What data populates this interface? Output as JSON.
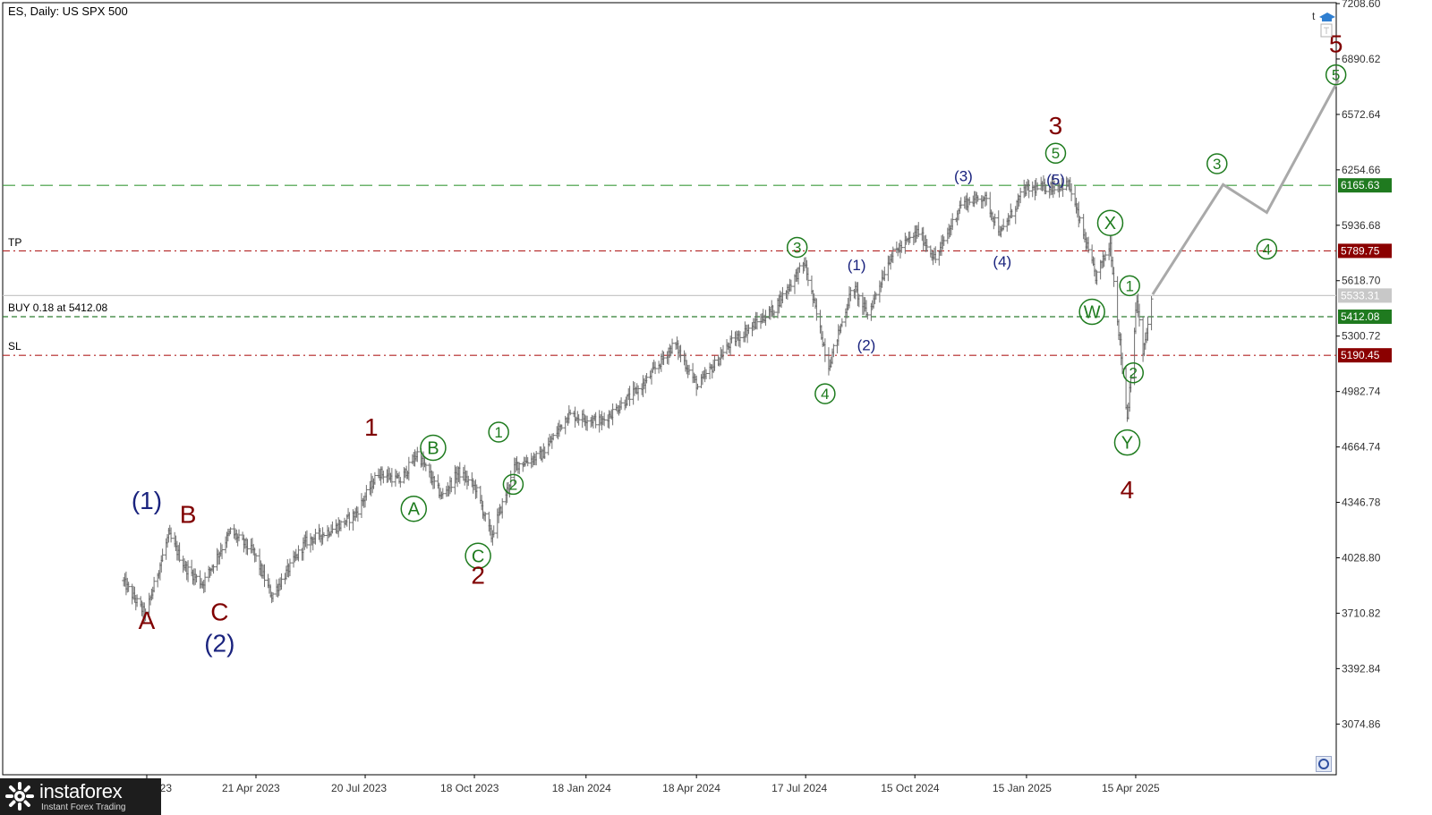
{
  "header": {
    "title": "ES, Daily:  US SPX 500"
  },
  "levels": {
    "tp_label": "TP",
    "buy_label": "BUY 0.18 at 5412.08",
    "sl_label": "SL"
  },
  "logo": {
    "name": "instaforex",
    "tagline": "Instant Forex Trading"
  },
  "icons": {
    "top_right": "trade-hat-icon",
    "bottom_right": "auto-scroll-icon"
  },
  "colors": {
    "bar": "#6e6e6e",
    "blue_label": "#1a237e",
    "red_label": "#800000",
    "green_label": "#1e7b1e",
    "tp_sl_line": "#b22222",
    "buy_line": "#2e7d32",
    "target_line": "#3c9a3c",
    "current_line": "#c8c8c8",
    "projection": "#a9a9a9"
  },
  "chart_data": {
    "type": "ohlc",
    "title": "ES, Daily:  US SPX 500",
    "ylim": [
      2940,
      7208.6
    ],
    "y_ticks": [
      3074.86,
      3392.84,
      3710.82,
      4028.8,
      4346.78,
      4664.74,
      4982.74,
      5300.72,
      5618.7,
      5936.68,
      6254.66,
      6572.64,
      6890.62,
      7208.6
    ],
    "x_ticks": [
      "21 Jan 2023",
      "21 Apr 2023",
      "20 Jul 2023",
      "18 Oct 2023",
      "18 Jan 2024",
      "18 Apr 2024",
      "17 Jul 2024",
      "15 Oct 2024",
      "15 Jan 2025",
      "15 Apr 2025"
    ],
    "price_lines": [
      {
        "name": "target",
        "value": 6165.63,
        "label": "6165.63",
        "style": "dashed-green"
      },
      {
        "name": "tp",
        "value": 5789.75,
        "label": "5789.75",
        "style": "dashdot-red"
      },
      {
        "name": "current",
        "value": 5533.31,
        "label": "5533.31",
        "style": "solid-grey"
      },
      {
        "name": "buy",
        "value": 5412.08,
        "label": "5412.08",
        "style": "dashed-green"
      },
      {
        "name": "sl",
        "value": 5190.45,
        "label": "5190.45",
        "style": "dashdot-red"
      }
    ],
    "price_path": [
      [
        "2023-01-01",
        3900
      ],
      [
        "2023-01-20",
        3700
      ],
      [
        "2023-02-08",
        4160
      ],
      [
        "2023-02-22",
        3970
      ],
      [
        "2023-03-08",
        3880
      ],
      [
        "2023-03-31",
        4180
      ],
      [
        "2023-04-19",
        4060
      ],
      [
        "2023-05-04",
        3810
      ],
      [
        "2023-06-01",
        4120
      ],
      [
        "2023-06-28",
        4210
      ],
      [
        "2023-07-12",
        4280
      ],
      [
        "2023-07-31",
        4520
      ],
      [
        "2023-08-18",
        4470
      ],
      [
        "2023-09-01",
        4630
      ],
      [
        "2023-09-21",
        4380
      ],
      [
        "2023-10-05",
        4520
      ],
      [
        "2023-10-19",
        4430
      ],
      [
        "2023-11-01",
        4150
      ],
      [
        "2023-11-21",
        4560
      ],
      [
        "2023-12-13",
        4620
      ],
      [
        "2024-01-03",
        4850
      ],
      [
        "2024-01-31",
        4810
      ],
      [
        "2024-03-05",
        5020
      ],
      [
        "2024-03-31",
        5260
      ],
      [
        "2024-04-19",
        5010
      ],
      [
        "2024-05-16",
        5260
      ],
      [
        "2024-06-20",
        5450
      ],
      [
        "2024-07-16",
        5720
      ],
      [
        "2024-08-05",
        5130
      ],
      [
        "2024-08-25",
        5590
      ],
      [
        "2024-09-06",
        5420
      ],
      [
        "2024-09-25",
        5760
      ],
      [
        "2024-10-18",
        5900
      ],
      [
        "2024-11-01",
        5740
      ],
      [
        "2024-11-22",
        6060
      ],
      [
        "2024-12-11",
        6100
      ],
      [
        "2024-12-25",
        5890
      ],
      [
        "2025-01-13",
        6140
      ],
      [
        "2025-02-19",
        6170
      ],
      [
        "2025-03-13",
        5640
      ],
      [
        "2025-03-25",
        5830
      ],
      [
        "2025-04-08",
        4830
      ],
      [
        "2025-04-16",
        5510
      ],
      [
        "2025-04-21",
        5190
      ],
      [
        "2025-04-29",
        5540
      ]
    ],
    "projection": [
      [
        "2025-04-29",
        5540
      ],
      [
        "2025-06-26",
        6170
      ],
      [
        "2025-08-01",
        6010
      ],
      [
        "2025-09-29",
        6770
      ]
    ],
    "wave_labels": [
      {
        "text": "(1)",
        "date": "2023-01-21",
        "price": 4360,
        "color": "blue",
        "size": "large",
        "circled": false
      },
      {
        "text": "A",
        "date": "2023-01-21",
        "price": 3670,
        "color": "red",
        "size": "large",
        "circled": false
      },
      {
        "text": "B",
        "date": "2023-02-24",
        "price": 4280,
        "color": "red",
        "size": "large",
        "circled": false
      },
      {
        "text": "C",
        "date": "2023-03-22",
        "price": 3720,
        "color": "red",
        "size": "large",
        "circled": false
      },
      {
        "text": "(2)",
        "date": "2023-03-22",
        "price": 3540,
        "color": "blue",
        "size": "large",
        "circled": false
      },
      {
        "text": "1",
        "date": "2023-07-25",
        "price": 4780,
        "color": "red",
        "size": "large",
        "circled": false
      },
      {
        "text": "A",
        "date": "2023-08-29",
        "price": 4310,
        "color": "green",
        "size": "medium",
        "circled": true
      },
      {
        "text": "B",
        "date": "2023-09-14",
        "price": 4660,
        "color": "green",
        "size": "medium",
        "circled": true
      },
      {
        "text": "C",
        "date": "2023-10-21",
        "price": 4040,
        "color": "green",
        "size": "medium",
        "circled": true
      },
      {
        "text": "2",
        "date": "2023-10-21",
        "price": 3930,
        "color": "red",
        "size": "large",
        "circled": false
      },
      {
        "text": "1",
        "date": "2023-11-07",
        "price": 4750,
        "color": "green",
        "size": "small",
        "circled": true
      },
      {
        "text": "2",
        "date": "2023-11-19",
        "price": 4450,
        "color": "green",
        "size": "small",
        "circled": true
      },
      {
        "text": "3",
        "date": "2024-07-10",
        "price": 5810,
        "color": "green",
        "size": "small",
        "circled": true
      },
      {
        "text": "4",
        "date": "2024-08-02",
        "price": 4970,
        "color": "green",
        "size": "small",
        "circled": true
      },
      {
        "text": "(1)",
        "date": "2024-08-28",
        "price": 5710,
        "color": "blue",
        "size": "small",
        "circled": false
      },
      {
        "text": "(2)",
        "date": "2024-09-05",
        "price": 5250,
        "color": "blue",
        "size": "small",
        "circled": false
      },
      {
        "text": "(3)",
        "date": "2024-11-24",
        "price": 6220,
        "color": "blue",
        "size": "small",
        "circled": false
      },
      {
        "text": "(4)",
        "date": "2024-12-26",
        "price": 5730,
        "color": "blue",
        "size": "small",
        "circled": false
      },
      {
        "text": "(5)",
        "date": "2025-02-08",
        "price": 6200,
        "color": "blue",
        "size": "small",
        "circled": false
      },
      {
        "text": "5",
        "date": "2025-02-08",
        "price": 6350,
        "color": "green",
        "size": "small",
        "circled": true
      },
      {
        "text": "3",
        "date": "2025-02-08",
        "price": 6510,
        "color": "red",
        "size": "large",
        "circled": false
      },
      {
        "text": "X",
        "date": "2025-03-25",
        "price": 5950,
        "color": "green",
        "size": "medium",
        "circled": true
      },
      {
        "text": "W",
        "date": "2025-03-10",
        "price": 5440,
        "color": "green",
        "size": "medium",
        "circled": true
      },
      {
        "text": "1",
        "date": "2025-04-10",
        "price": 5590,
        "color": "green",
        "size": "small",
        "circled": true
      },
      {
        "text": "2",
        "date": "2025-04-13",
        "price": 5090,
        "color": "green",
        "size": "small",
        "circled": true
      },
      {
        "text": "Y",
        "date": "2025-04-08",
        "price": 4690,
        "color": "green",
        "size": "medium",
        "circled": true
      },
      {
        "text": "4",
        "date": "2025-04-08",
        "price": 4420,
        "color": "red",
        "size": "large",
        "circled": false
      },
      {
        "text": "3",
        "date": "2025-06-21",
        "price": 6290,
        "color": "green",
        "size": "small",
        "circled": true
      },
      {
        "text": "4",
        "date": "2025-08-01",
        "price": 5800,
        "color": "green",
        "size": "small",
        "circled": true
      },
      {
        "text": "5",
        "date": "2025-09-27",
        "price": 6800,
        "color": "green",
        "size": "small",
        "circled": true
      },
      {
        "text": "5",
        "date": "2025-09-27",
        "price": 6980,
        "color": "red",
        "size": "large",
        "circled": false
      }
    ]
  }
}
